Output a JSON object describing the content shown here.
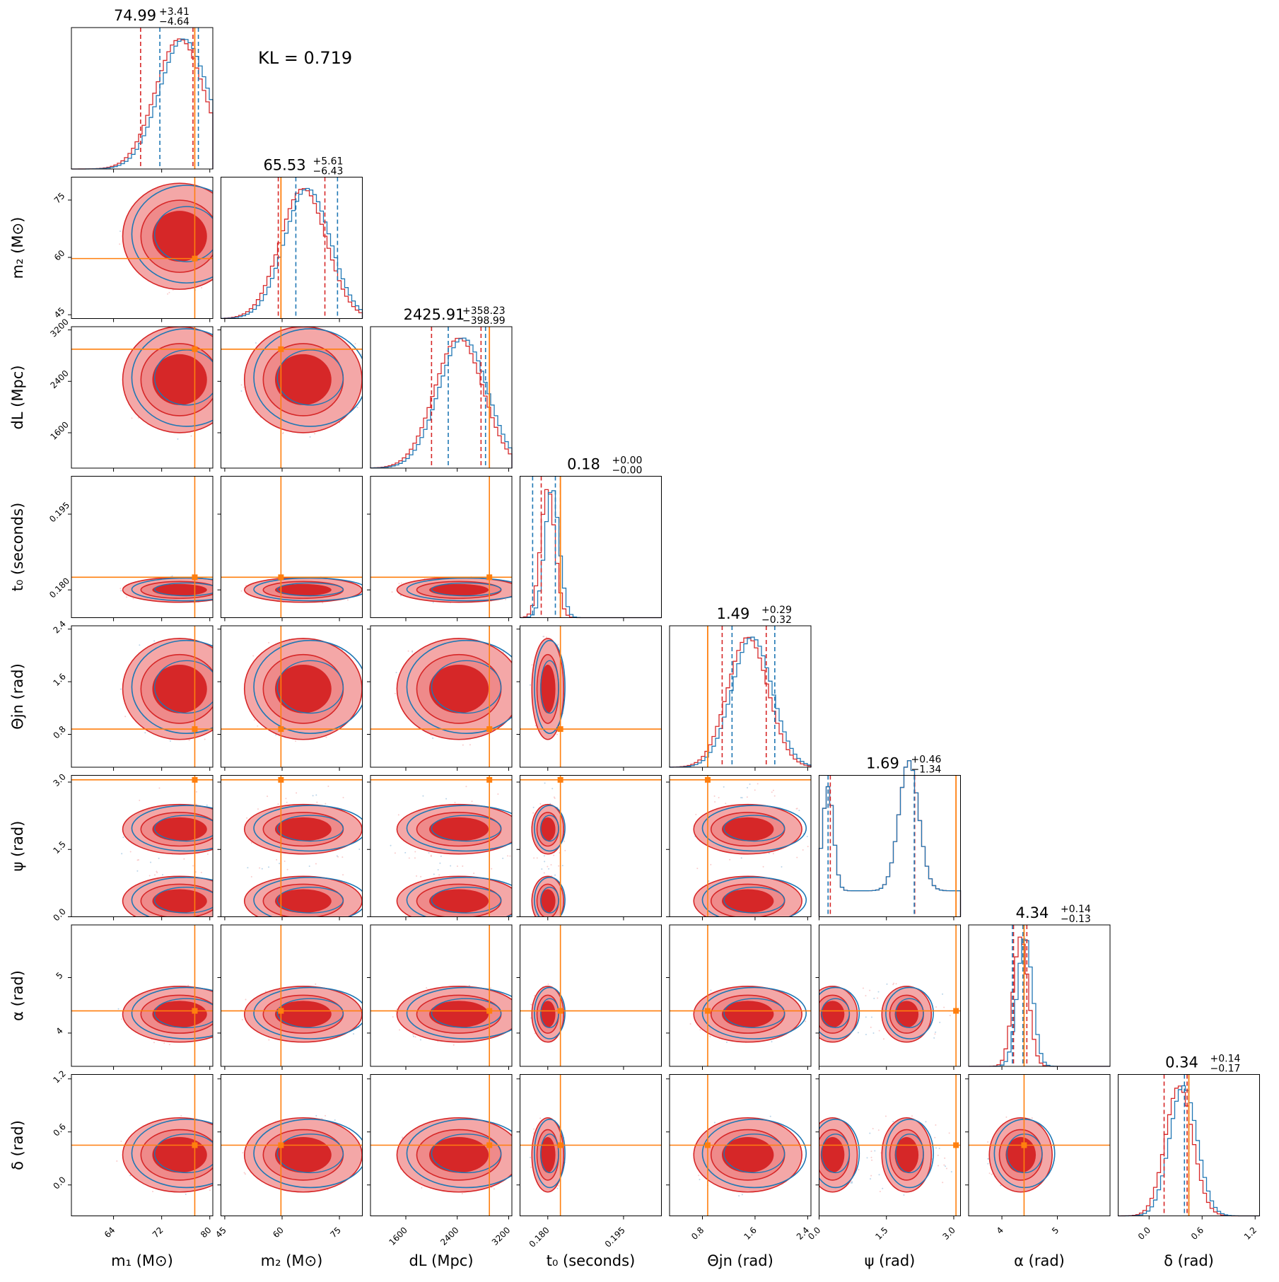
{
  "annotation": "KL = 0.719",
  "colors": {
    "posterior_a": "#d62728",
    "posterior_a_light": "#f4a7a7",
    "posterior_b": "#1f77b4",
    "truth": "#ff7f0e"
  },
  "chart_data": {
    "type": "corner",
    "parameters": [
      {
        "key": "m1",
        "label": "m₁ (M⊙)",
        "range": [
          57,
          80.5
        ],
        "ticks": [
          64,
          72,
          80
        ],
        "median": 74.99,
        "plus": "+3.41",
        "minus": "−4.64",
        "title": "74.99",
        "truth": 77.5
      },
      {
        "key": "m2",
        "label": "m₂ (M⊙)",
        "range": [
          44,
          81
        ],
        "ticks": [
          45,
          60,
          75
        ],
        "median": 65.53,
        "plus": "+5.61",
        "minus": "−6.43",
        "title": "65.53",
        "truth": 59.7
      },
      {
        "key": "dL",
        "label": "dL (Mpc)",
        "range": [
          1050,
          3250
        ],
        "ticks": [
          1600,
          2400,
          3200
        ],
        "median": 2425.91,
        "plus": "+358.23",
        "minus": "−398.99",
        "title": "2425.91",
        "truth": 2900
      },
      {
        "key": "t0",
        "label": "t₀ (seconds)",
        "range": [
          0.1745,
          0.2025
        ],
        "ticks": [
          0.18,
          0.195
        ],
        "tick_labels": [
          "0.180",
          "0.195"
        ],
        "median": 0.18,
        "plus": "+0.00",
        "minus": "−0.00",
        "title": "0.18",
        "truth": 0.1825
      },
      {
        "key": "theta_jn",
        "label": "Θjn (rad)",
        "range": [
          0.3,
          2.45
        ],
        "ticks": [
          0.8,
          1.6,
          2.4
        ],
        "median": 1.49,
        "plus": "+0.29",
        "minus": "−0.32",
        "title": "1.49",
        "truth": 0.88
      },
      {
        "key": "psi",
        "label": "ψ (rad)",
        "range": [
          0,
          3.15
        ],
        "ticks": [
          0,
          1.5,
          3.0
        ],
        "tick_labels": [
          "0.0",
          "1.5",
          "3.0"
        ],
        "median": 1.69,
        "plus": "+0.46",
        "minus": "−1.34",
        "title": "1.69",
        "truth": 3.05
      },
      {
        "key": "alpha",
        "label": "α (rad)",
        "range": [
          3.4,
          5.95
        ],
        "ticks": [
          4,
          5
        ],
        "median": 4.34,
        "plus": "+0.14",
        "minus": "−0.13",
        "title": "4.34",
        "truth": 4.4
      },
      {
        "key": "delta",
        "label": "δ (rad)",
        "range": [
          -0.35,
          1.25
        ],
        "ticks": [
          0.0,
          0.6,
          1.2
        ],
        "tick_labels": [
          "0.0",
          "0.6",
          "1.2"
        ],
        "median": 0.34,
        "plus": "+0.14",
        "minus": "−0.17",
        "title": "0.34",
        "truth": 0.45
      }
    ],
    "diagonal_quantiles": [
      {
        "a": [
          68.5,
          77.2
        ],
        "b": [
          71.7,
          78.1
        ]
      },
      {
        "a": [
          59.0,
          71.2
        ],
        "b": [
          63.6,
          74.5
        ]
      },
      {
        "a": [
          2000,
          2770
        ],
        "b": [
          2260,
          2840
        ]
      },
      {
        "a": [
          0.1787,
          0.1825
        ],
        "b": [
          0.177,
          0.1815
        ]
      },
      {
        "a": [
          1.1,
          1.77
        ],
        "b": [
          1.25,
          1.9
        ]
      },
      {
        "a": [
          0.25,
          2.13
        ],
        "b": [
          0.2,
          2.12
        ]
      },
      {
        "a": [
          4.21,
          4.45
        ],
        "b": [
          4.19,
          4.38
        ]
      },
      {
        "a": [
          0.17,
          0.43
        ],
        "b": [
          0.4,
          0.45
        ]
      }
    ]
  }
}
